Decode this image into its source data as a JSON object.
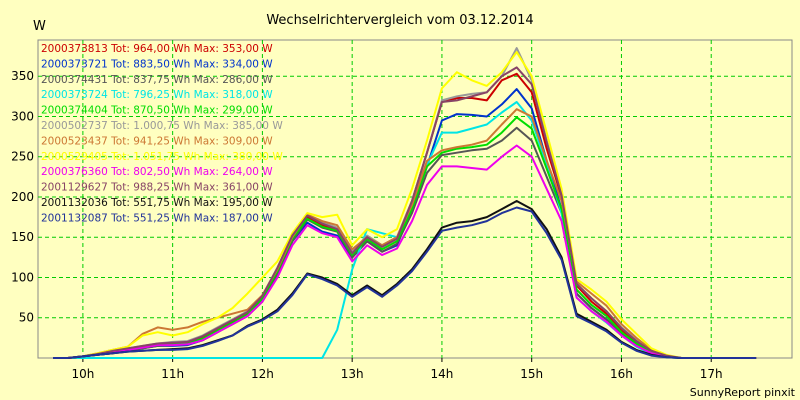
{
  "window": {
    "background": "#ffffc0",
    "plot_background": "#ffffc0",
    "grid_color": "#00cc00"
  },
  "chart_data": {
    "type": "line",
    "title": "Wechselrichtervergleich vom 03.12.2014",
    "ylabel": "W",
    "xlabel": "",
    "footer": "SunnyReport pinxit",
    "x": [
      "09:40",
      "09:50",
      "10:00",
      "10:10",
      "10:20",
      "10:30",
      "10:40",
      "10:50",
      "11:00",
      "11:10",
      "11:20",
      "11:30",
      "11:40",
      "11:50",
      "12:00",
      "12:10",
      "12:20",
      "12:30",
      "12:40",
      "12:50",
      "13:00",
      "13:10",
      "13:20",
      "13:30",
      "13:40",
      "13:50",
      "14:00",
      "14:10",
      "14:20",
      "14:30",
      "14:40",
      "14:50",
      "15:00",
      "15:10",
      "15:20",
      "15:30",
      "15:40",
      "15:50",
      "16:00",
      "16:10",
      "16:20",
      "16:30",
      "16:40",
      "16:50",
      "17:00",
      "17:10",
      "17:20",
      "17:30"
    ],
    "x_ticks": [
      "10h",
      "11h",
      "12h",
      "13h",
      "14h",
      "15h",
      "16h",
      "17h"
    ],
    "ylim": [
      0,
      395
    ],
    "y_ticks": [
      50,
      100,
      150,
      200,
      250,
      300,
      350
    ],
    "grid": true,
    "legend_position": "top-left inside plot",
    "series": [
      {
        "name": "2000373813 Tot: 964,00 Wh Max: 353,00 W",
        "color": "#cc0000",
        "values": [
          0,
          0,
          2,
          5,
          8,
          11,
          14,
          17,
          18,
          18,
          25,
          35,
          45,
          55,
          75,
          110,
          150,
          175,
          165,
          160,
          130,
          150,
          140,
          150,
          195,
          255,
          318,
          323,
          323,
          320,
          345,
          353,
          330,
          260,
          200,
          90,
          70,
          55,
          35,
          20,
          8,
          2,
          0,
          0,
          0,
          0,
          0,
          0
        ]
      },
      {
        "name": "2000373721 Tot: 883,50 Wh Max: 334,00 W",
        "color": "#0033cc",
        "values": [
          0,
          0,
          2,
          4,
          6,
          9,
          12,
          15,
          15,
          16,
          22,
          32,
          43,
          52,
          72,
          105,
          145,
          168,
          157,
          152,
          125,
          145,
          132,
          140,
          185,
          238,
          295,
          303,
          302,
          300,
          315,
          334,
          310,
          245,
          185,
          80,
          62,
          48,
          30,
          16,
          6,
          2,
          0,
          0,
          0,
          0,
          0,
          0
        ]
      },
      {
        "name": "2000374431 Tot: 837,75 Wh Max: 286,00 W",
        "color": "#555555",
        "values": [
          0,
          0,
          2,
          4,
          6,
          9,
          12,
          15,
          16,
          17,
          22,
          32,
          42,
          52,
          70,
          105,
          145,
          172,
          162,
          157,
          125,
          145,
          132,
          142,
          180,
          230,
          252,
          255,
          258,
          260,
          270,
          286,
          270,
          225,
          180,
          80,
          62,
          48,
          30,
          16,
          6,
          2,
          0,
          0,
          0,
          0,
          0,
          0
        ]
      },
      {
        "name": "2000373724 Tot: 796,25 Wh Max: 318,00 W",
        "color": "#00e5e5",
        "values": [
          0,
          0,
          0,
          0,
          0,
          0,
          0,
          0,
          0,
          0,
          0,
          0,
          0,
          0,
          0,
          0,
          0,
          0,
          0,
          35,
          110,
          160,
          155,
          150,
          190,
          240,
          280,
          280,
          285,
          290,
          305,
          318,
          295,
          240,
          180,
          75,
          58,
          44,
          28,
          14,
          5,
          1,
          0,
          0,
          0,
          0,
          0,
          0
        ]
      },
      {
        "name": "2000374404 Tot: 870,50 Wh Max: 299,00 W",
        "color": "#00dd00",
        "values": [
          0,
          0,
          2,
          5,
          8,
          11,
          14,
          16,
          17,
          18,
          24,
          34,
          44,
          54,
          74,
          108,
          148,
          173,
          163,
          158,
          128,
          148,
          135,
          145,
          185,
          238,
          255,
          260,
          262,
          265,
          280,
          299,
          285,
          235,
          185,
          85,
          66,
          52,
          32,
          18,
          7,
          2,
          0,
          0,
          0,
          0,
          0,
          0
        ]
      },
      {
        "name": "2000502737 Tot: 1.000,75 Wh Max: 385,00 W",
        "color": "#999999",
        "values": [
          0,
          0,
          2,
          5,
          9,
          12,
          15,
          18,
          20,
          21,
          28,
          38,
          48,
          58,
          78,
          112,
          152,
          178,
          168,
          162,
          132,
          152,
          140,
          150,
          195,
          255,
          320,
          325,
          328,
          330,
          350,
          385,
          345,
          270,
          205,
          92,
          74,
          58,
          38,
          22,
          9,
          3,
          0,
          0,
          0,
          0,
          0,
          0
        ]
      },
      {
        "name": "2000523437 Tot: 941,25 Wh Max: 309,00 W",
        "color": "#cc7733",
        "values": [
          0,
          0,
          2,
          6,
          10,
          14,
          30,
          38,
          35,
          38,
          45,
          50,
          55,
          60,
          78,
          110,
          150,
          178,
          170,
          165,
          135,
          150,
          140,
          150,
          190,
          245,
          258,
          262,
          265,
          270,
          290,
          309,
          300,
          245,
          195,
          95,
          80,
          65,
          42,
          25,
          10,
          3,
          0,
          0,
          0,
          0,
          0,
          0
        ]
      },
      {
        "name": "2000529405 Tot: 1.051,75 Wh Max: 380,00 W",
        "color": "#ffff00",
        "values": [
          0,
          0,
          2,
          6,
          10,
          14,
          28,
          32,
          28,
          32,
          42,
          50,
          62,
          80,
          100,
          120,
          155,
          180,
          175,
          178,
          140,
          160,
          150,
          160,
          210,
          270,
          335,
          355,
          345,
          338,
          355,
          380,
          350,
          280,
          210,
          98,
          85,
          70,
          48,
          30,
          12,
          4,
          0,
          0,
          0,
          0,
          0,
          0
        ]
      },
      {
        "name": "2000376360 Tot: 802,50 Wh Max: 264,00 W",
        "color": "#ee00ee",
        "values": [
          0,
          0,
          2,
          4,
          7,
          10,
          13,
          16,
          16,
          17,
          22,
          32,
          42,
          52,
          70,
          100,
          140,
          165,
          155,
          150,
          120,
          140,
          128,
          136,
          170,
          215,
          238,
          238,
          236,
          234,
          250,
          264,
          250,
          210,
          170,
          75,
          58,
          45,
          28,
          15,
          6,
          2,
          0,
          0,
          0,
          0,
          0,
          0
        ]
      },
      {
        "name": "2001129627 Tot: 988,25 Wh Max: 361,00 W",
        "color": "#884466",
        "values": [
          0,
          0,
          2,
          5,
          9,
          12,
          15,
          18,
          19,
          20,
          27,
          37,
          47,
          57,
          77,
          112,
          152,
          177,
          167,
          160,
          130,
          150,
          138,
          148,
          195,
          255,
          318,
          320,
          325,
          330,
          350,
          361,
          340,
          268,
          202,
          92,
          74,
          58,
          37,
          21,
          9,
          3,
          0,
          0,
          0,
          0,
          0,
          0
        ]
      },
      {
        "name": "2001132036 Tot: 551,75 Wh Max: 195,00 W",
        "color": "#111111",
        "values": [
          0,
          0,
          2,
          4,
          6,
          8,
          9,
          10,
          11,
          12,
          16,
          22,
          28,
          40,
          48,
          60,
          80,
          105,
          100,
          92,
          78,
          90,
          78,
          92,
          110,
          135,
          162,
          168,
          170,
          175,
          185,
          195,
          185,
          160,
          125,
          55,
          45,
          35,
          20,
          10,
          4,
          1,
          0,
          0,
          0,
          0,
          0,
          0
        ]
      },
      {
        "name": "2001132087 Tot: 551,25 Wh Max: 187,00 W",
        "color": "#223399",
        "values": [
          0,
          0,
          2,
          4,
          6,
          8,
          9,
          10,
          10,
          11,
          15,
          21,
          28,
          39,
          47,
          58,
          78,
          104,
          98,
          90,
          76,
          88,
          76,
          90,
          108,
          132,
          158,
          162,
          165,
          170,
          180,
          187,
          182,
          155,
          122,
          52,
          43,
          33,
          19,
          9,
          3,
          1,
          0,
          0,
          0,
          0,
          0,
          0
        ]
      }
    ]
  }
}
